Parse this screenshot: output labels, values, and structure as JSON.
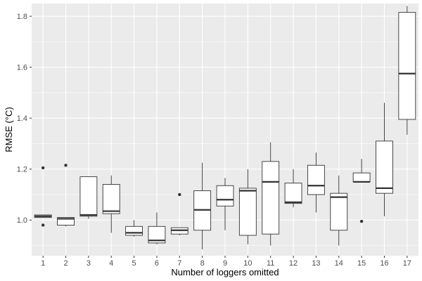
{
  "chart_data": {
    "type": "boxplot",
    "title": "",
    "xlabel": "Number of loggers omitted",
    "ylabel": "RMSE (°C)",
    "ylim": [
      0.86,
      1.85
    ],
    "yticks": [
      1.0,
      1.2,
      1.4,
      1.6,
      1.8
    ],
    "ytick_labels": [
      "1.0",
      "1.2",
      "1.4",
      "1.6",
      "1.8"
    ],
    "categories": [
      "1",
      "2",
      "3",
      "4",
      "5",
      "6",
      "7",
      "8",
      "9",
      "10",
      "11",
      "12",
      "13",
      "14",
      "15",
      "16",
      "17"
    ],
    "boxes": [
      {
        "min": 1.01,
        "q1": 1.01,
        "median": 1.015,
        "q3": 1.02,
        "max": 1.02,
        "outliers": [
          1.205,
          0.98
        ]
      },
      {
        "min": 0.975,
        "q1": 0.98,
        "median": 1.005,
        "q3": 1.01,
        "max": 1.01,
        "outliers": [
          1.215
        ]
      },
      {
        "min": 1.005,
        "q1": 1.015,
        "median": 1.02,
        "q3": 1.17,
        "max": 1.17,
        "outliers": []
      },
      {
        "min": 0.95,
        "q1": 1.025,
        "median": 1.035,
        "q3": 1.14,
        "max": 1.175,
        "outliers": []
      },
      {
        "min": 0.935,
        "q1": 0.94,
        "median": 0.95,
        "q3": 0.975,
        "max": 1.0,
        "outliers": []
      },
      {
        "min": 0.905,
        "q1": 0.91,
        "median": 0.92,
        "q3": 0.975,
        "max": 1.03,
        "outliers": []
      },
      {
        "min": 0.94,
        "q1": 0.945,
        "median": 0.96,
        "q3": 0.97,
        "max": 0.97,
        "outliers": [
          1.1
        ]
      },
      {
        "min": 0.885,
        "q1": 0.96,
        "median": 1.04,
        "q3": 1.115,
        "max": 1.225,
        "outliers": []
      },
      {
        "min": 0.96,
        "q1": 1.055,
        "median": 1.08,
        "q3": 1.135,
        "max": 1.165,
        "outliers": []
      },
      {
        "min": 0.905,
        "q1": 0.94,
        "median": 1.115,
        "q3": 1.125,
        "max": 1.2,
        "outliers": []
      },
      {
        "min": 0.9,
        "q1": 0.945,
        "median": 1.15,
        "q3": 1.23,
        "max": 1.305,
        "outliers": []
      },
      {
        "min": 1.05,
        "q1": 1.065,
        "median": 1.07,
        "q3": 1.145,
        "max": 1.2,
        "outliers": []
      },
      {
        "min": 1.03,
        "q1": 1.1,
        "median": 1.135,
        "q3": 1.215,
        "max": 1.265,
        "outliers": []
      },
      {
        "min": 0.9,
        "q1": 0.96,
        "median": 1.09,
        "q3": 1.105,
        "max": 1.175,
        "outliers": []
      },
      {
        "min": 1.15,
        "q1": 1.15,
        "median": 1.15,
        "q3": 1.185,
        "max": 1.24,
        "outliers": [
          0.995
        ]
      },
      {
        "min": 1.015,
        "q1": 1.105,
        "median": 1.125,
        "q3": 1.31,
        "max": 1.46,
        "outliers": []
      },
      {
        "min": 1.335,
        "q1": 1.395,
        "median": 1.575,
        "q3": 1.815,
        "max": 1.84,
        "outliers": []
      }
    ],
    "grid": true,
    "legend": "none",
    "colors": {
      "panel_background": "#ebebeb",
      "gridline": "#ffffff",
      "box_fill": "#ffffff",
      "box_stroke": "#333333",
      "tick_label": "#4d4d4d",
      "axis_title": "#000000"
    }
  }
}
